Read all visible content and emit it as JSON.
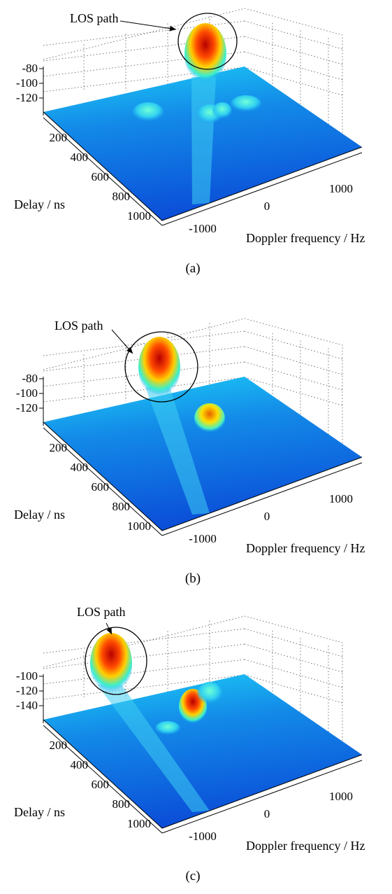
{
  "figure": {
    "panels": [
      {
        "caption": "(a)",
        "annotation": "LOS path",
        "z_ticks": [
          "-80",
          "-100",
          "-120"
        ],
        "delay_ticks": [
          "200",
          "400",
          "600",
          "800",
          "1000"
        ],
        "doppler_ticks": [
          "-1000",
          "0",
          "1000"
        ],
        "delay_label": "Delay / ns",
        "doppler_label": "Doppler frequency / Hz"
      },
      {
        "caption": "(b)",
        "annotation": "LOS path",
        "z_ticks": [
          "-80",
          "-100",
          "-120"
        ],
        "delay_ticks": [
          "200",
          "400",
          "600",
          "800",
          "1000"
        ],
        "doppler_ticks": [
          "-1000",
          "0",
          "1000"
        ],
        "delay_label": "Delay / ns",
        "doppler_label": "Doppler frequency / Hz"
      },
      {
        "caption": "(c)",
        "annotation": "LOS path",
        "z_ticks": [
          "-100",
          "-120",
          "-140"
        ],
        "delay_ticks": [
          "200",
          "400",
          "600",
          "800",
          "1000"
        ],
        "doppler_ticks": [
          "-1000",
          "0",
          "1000"
        ],
        "delay_label": "Delay / ns",
        "doppler_label": "Doppler frequency / Hz"
      }
    ]
  },
  "chart_data": [
    {
      "type": "surface",
      "x": {
        "quantity": "Doppler frequency",
        "unit": "Hz",
        "ticks": [
          -1000,
          0,
          1000
        ],
        "range": [
          -1500,
          1500
        ]
      },
      "y": {
        "quantity": "Delay",
        "unit": "ns",
        "ticks": [
          200,
          400,
          600,
          800,
          1000
        ],
        "range": [
          0,
          1100
        ]
      },
      "z": {
        "ticks": [
          -80,
          -100,
          -120
        ],
        "range": [
          -130,
          -70
        ]
      },
      "colormap": "jet",
      "grid": true,
      "peaks": [
        {
          "doppler": 0,
          "delay": 20,
          "level": -72,
          "note": "LOS path"
        },
        {
          "doppler": 100,
          "delay": 300,
          "level": -105
        },
        {
          "doppler": 700,
          "delay": 200,
          "level": -112
        },
        {
          "doppler": -900,
          "delay": 250,
          "level": -115
        }
      ]
    },
    {
      "type": "surface",
      "x": {
        "quantity": "Doppler frequency",
        "unit": "Hz",
        "ticks": [
          -1000,
          0,
          1000
        ],
        "range": [
          -1500,
          1500
        ]
      },
      "y": {
        "quantity": "Delay",
        "unit": "ns",
        "ticks": [
          200,
          400,
          600,
          800,
          1000
        ],
        "range": [
          0,
          1100
        ]
      },
      "z": {
        "ticks": [
          -80,
          -100,
          -120
        ],
        "range": [
          -130,
          -70
        ]
      },
      "colormap": "jet",
      "grid": true,
      "peaks": [
        {
          "doppler": -500,
          "delay": 30,
          "level": -75,
          "note": "LOS path"
        },
        {
          "doppler": 0,
          "delay": 400,
          "level": -95
        }
      ]
    },
    {
      "type": "surface",
      "x": {
        "quantity": "Doppler frequency",
        "unit": "Hz",
        "ticks": [
          -1000,
          0,
          1000
        ],
        "range": [
          -1500,
          1500
        ]
      },
      "y": {
        "quantity": "Delay",
        "unit": "ns",
        "ticks": [
          200,
          400,
          600,
          800,
          1000
        ],
        "range": [
          0,
          1100
        ]
      },
      "z": {
        "ticks": [
          -100,
          -120,
          -140
        ],
        "range": [
          -150,
          -90
        ]
      },
      "colormap": "jet",
      "grid": true,
      "peaks": [
        {
          "doppler": -1000,
          "delay": 80,
          "level": -95,
          "note": "LOS path"
        },
        {
          "doppler": -200,
          "delay": 380,
          "level": -110
        },
        {
          "doppler": 0,
          "delay": 250,
          "level": -128
        },
        {
          "doppler": -200,
          "delay": 100,
          "level": -130
        }
      ]
    }
  ]
}
